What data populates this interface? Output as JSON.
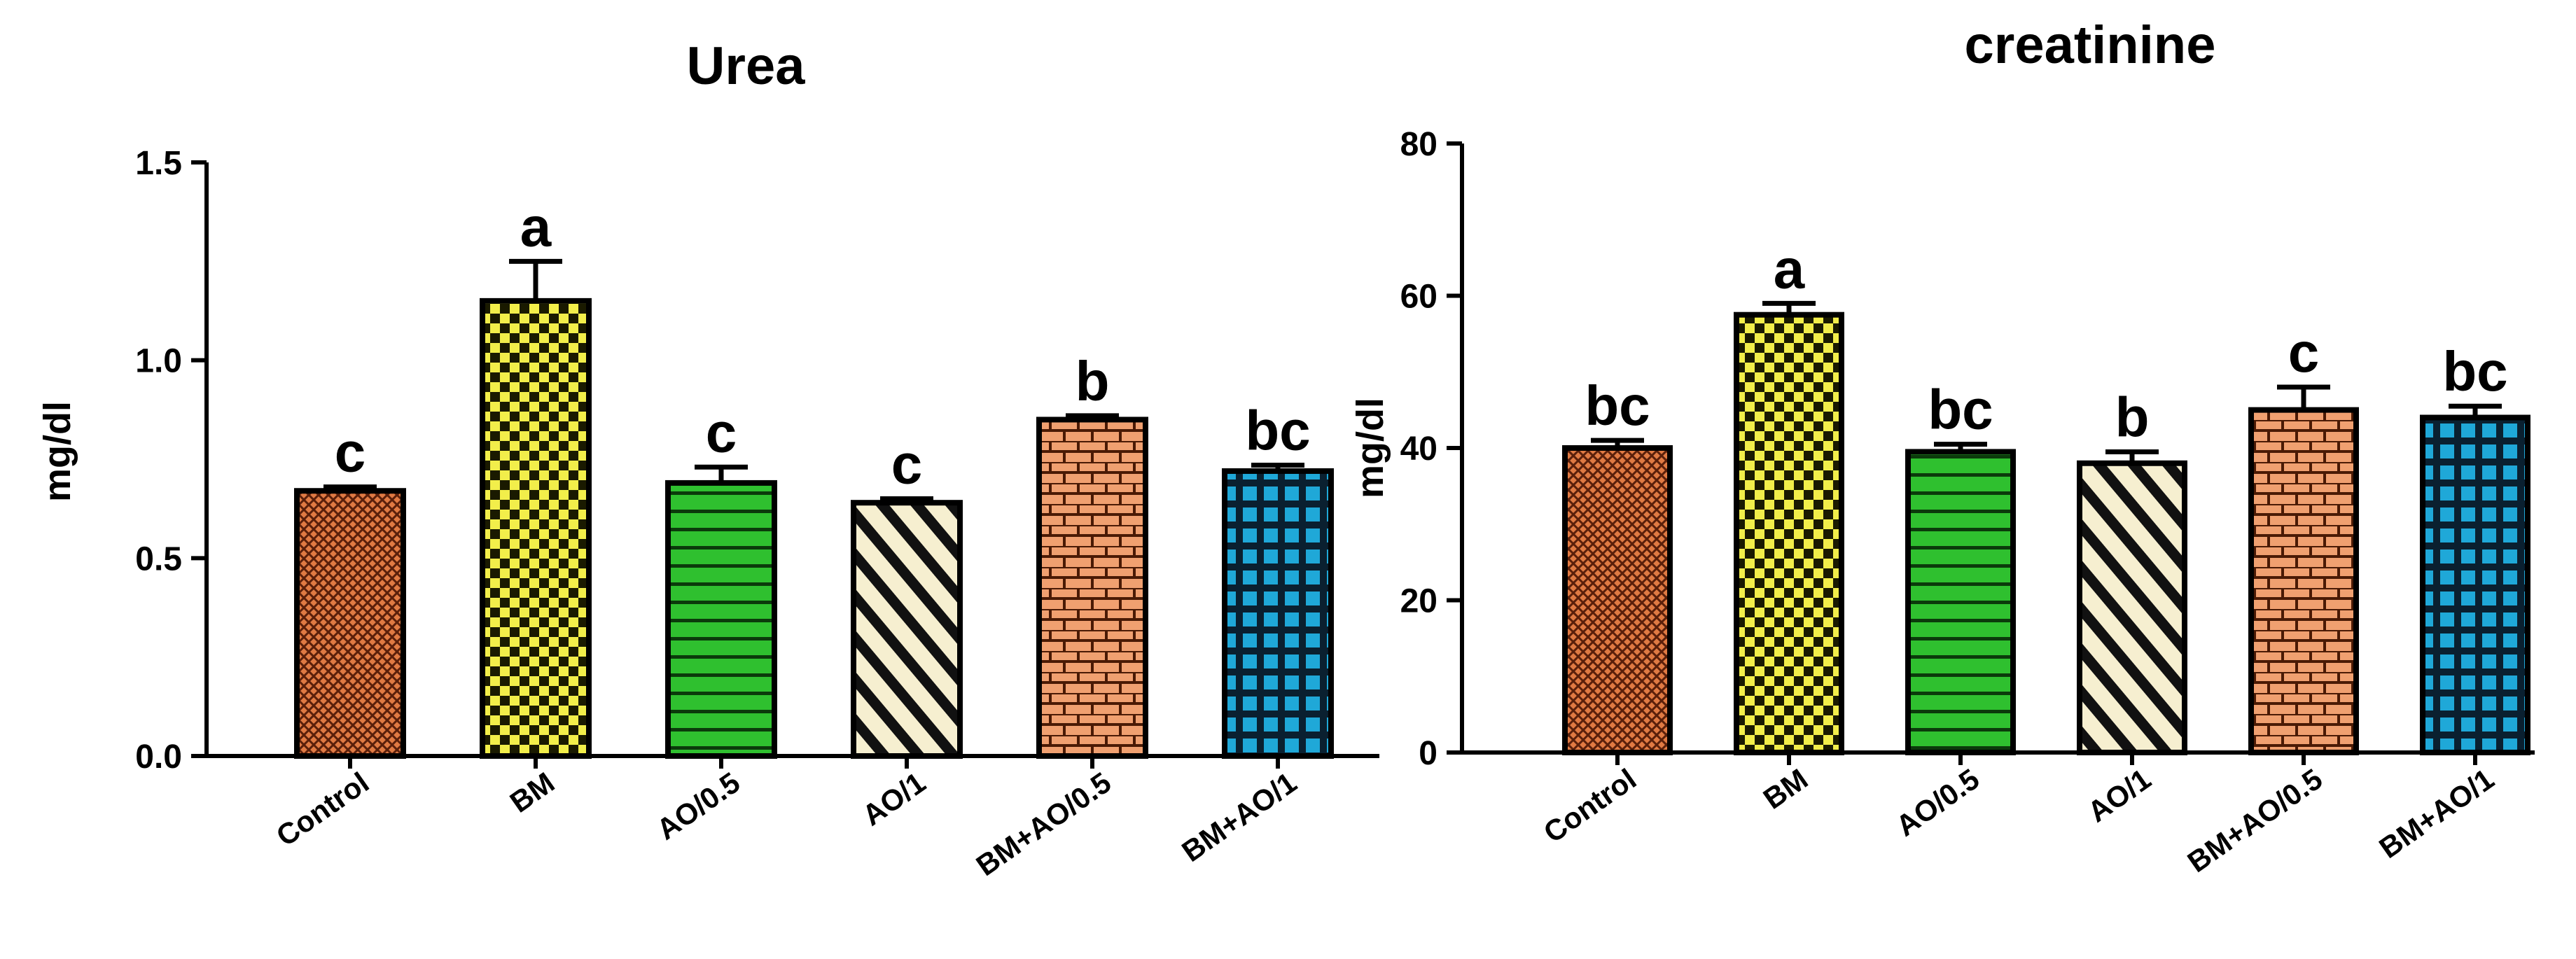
{
  "chart_data": [
    {
      "type": "bar",
      "title": "Urea",
      "ylabel": "mg/dl",
      "xlabel": "",
      "ylim": [
        0,
        1.5
      ],
      "yticks": [
        "0.0",
        "0.5",
        "1.0",
        "1.5"
      ],
      "categories": [
        "Control",
        "BM",
        "AO/0.5",
        "AO/1",
        "BM+AO/0.5",
        "BM+AO/1"
      ],
      "values": [
        0.67,
        1.15,
        0.69,
        0.64,
        0.85,
        0.72
      ],
      "errors": [
        0.01,
        0.1,
        0.04,
        0.01,
        0.01,
        0.015
      ],
      "significance": [
        "c",
        "a",
        "c",
        "c",
        "b",
        "bc"
      ],
      "bar_colors": [
        "#e07a43",
        "#f2ee4a",
        "#2fc02f",
        "#f3e9c2",
        "#e98a5a",
        "#1fa8d8"
      ],
      "patterns": [
        "crosshatch",
        "checker",
        "hstripes",
        "diagonal",
        "brick",
        "grid"
      ]
    },
    {
      "type": "bar",
      "title": "creatinine",
      "ylabel": "mg/dl",
      "xlabel": "",
      "ylim": [
        0,
        80
      ],
      "yticks": [
        "0",
        "20",
        "40",
        "60",
        "80"
      ],
      "categories": [
        "Control",
        "BM",
        "AO/0.5",
        "AO/1",
        "BM+AO/0.5",
        "BM+AO/1"
      ],
      "values": [
        40,
        57.5,
        39.5,
        38,
        45,
        44
      ],
      "errors": [
        1,
        1.5,
        1,
        1.5,
        3,
        1.5
      ],
      "significance": [
        "bc",
        "a",
        "bc",
        "b",
        "c",
        "bc"
      ],
      "bar_colors": [
        "#e07a43",
        "#f2ee4a",
        "#2fc02f",
        "#f3e9c2",
        "#e98a5a",
        "#1fa8d8"
      ],
      "patterns": [
        "crosshatch",
        "checker",
        "hstripes",
        "diagonal",
        "brick",
        "grid"
      ]
    }
  ]
}
